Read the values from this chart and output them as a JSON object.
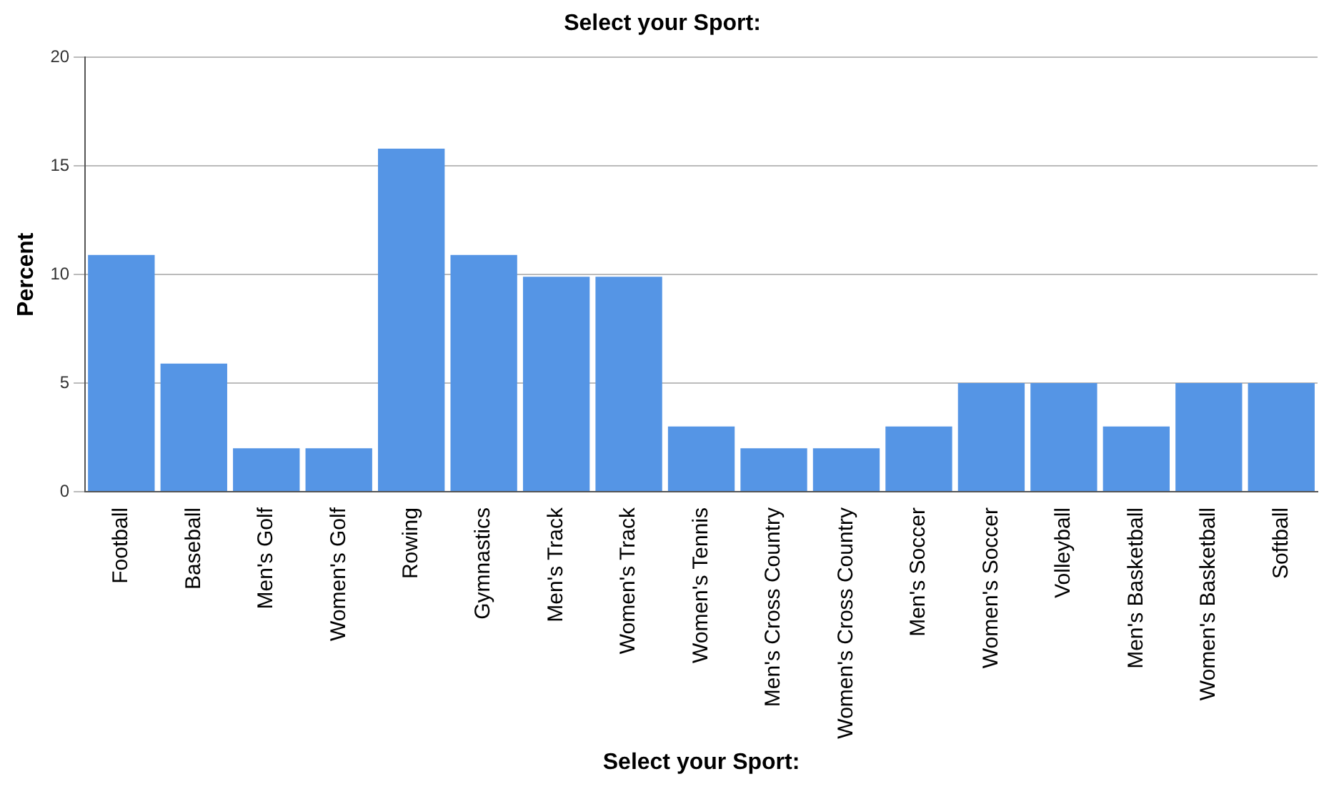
{
  "chart_data": {
    "type": "bar",
    "title": "Select your Sport:",
    "xlabel": "Select your Sport:",
    "ylabel": "Percent",
    "categories": [
      "Football",
      "Baseball",
      "Men's Golf",
      "Women's Golf",
      "Rowing",
      "Gymnastics",
      "Men's Track",
      "Women's Track",
      "Women's Tennis",
      "Men's Cross Country",
      "Women's Cross Country",
      "Men's Soccer",
      "Women's Soccer",
      "Volleyball",
      "Men's Basketball",
      "Women's Basketball",
      "Softball"
    ],
    "values": [
      10.9,
      5.9,
      2,
      2,
      15.8,
      10.9,
      9.9,
      9.9,
      3,
      2,
      2,
      3,
      5,
      5,
      3,
      5,
      5
    ],
    "color": "#5595e5",
    "ylim": [
      0,
      20
    ],
    "yticks": [
      0,
      5,
      10,
      15,
      20
    ],
    "grid": "y",
    "legend": false
  }
}
